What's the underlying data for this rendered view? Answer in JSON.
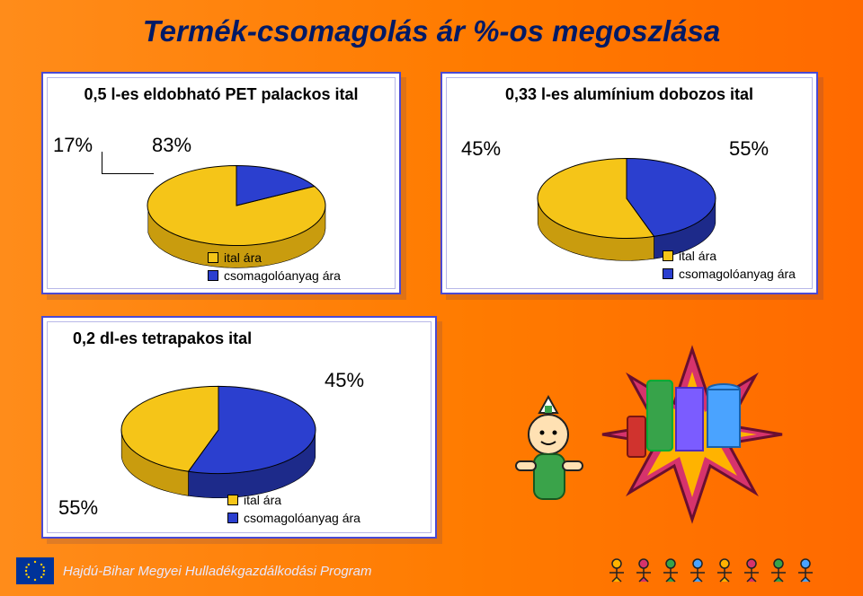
{
  "page": {
    "title": "Termék-csomagolás ár %-os megoszlása",
    "background_gradient": [
      "#ff8c1a",
      "#ff6a00"
    ],
    "title_color": "#001a66",
    "title_fontsize": 33
  },
  "chart_pet": {
    "type": "pie",
    "title": "0,5 l-es eldobható PET palackos ital",
    "slices": [
      {
        "label": "ital ára",
        "value": 83,
        "pct_label": "83%",
        "color": "#f5c518"
      },
      {
        "label": "csomagolóanyag ára",
        "value": 17,
        "pct_label": "17%",
        "color": "#2b3fcf"
      }
    ],
    "thickness_ratio": 0.18,
    "rim_shade": "#c99c0e",
    "rim_shade_blue": "#1d2a8a",
    "background": "#ffffff",
    "border_color": "#4a4ad4",
    "label_color": "#000000",
    "label_fontsize": 22,
    "legend_fontsize": 14
  },
  "chart_alu": {
    "type": "pie",
    "title": "0,33 l-es alumínium dobozos ital",
    "slices": [
      {
        "label": "ital ára",
        "value": 55,
        "pct_label": "55%",
        "color": "#f5c518"
      },
      {
        "label": "csomagolóanyag ára",
        "value": 45,
        "pct_label": "45%",
        "color": "#2b3fcf"
      }
    ],
    "thickness_ratio": 0.18,
    "rim_shade": "#c99c0e",
    "rim_shade_blue": "#1d2a8a",
    "background": "#ffffff",
    "border_color": "#4a4ad4",
    "label_color": "#000000",
    "label_fontsize": 22,
    "legend_fontsize": 14
  },
  "chart_tetra": {
    "type": "pie",
    "title": "0,2 dl-es tetrapakos ital",
    "slices": [
      {
        "label": "ital ára",
        "value": 45,
        "pct_label": "45%",
        "color": "#f5c518"
      },
      {
        "label": "csomagolóanyag ára",
        "value": 55,
        "pct_label": "55%",
        "color": "#2b3fcf"
      }
    ],
    "thickness_ratio": 0.18,
    "rim_shade": "#c99c0e",
    "rim_shade_blue": "#1d2a8a",
    "background": "#ffffff",
    "border_color": "#4a4ad4",
    "label_color": "#000000",
    "label_fontsize": 22,
    "legend_fontsize": 14
  },
  "footer": {
    "text": "Hajdú-Bihar Megyei Hulladékgazdálkodási Program",
    "text_color": "#e8e8ff",
    "flag_bg": "#003399",
    "flag_star": "#ffcc00"
  }
}
